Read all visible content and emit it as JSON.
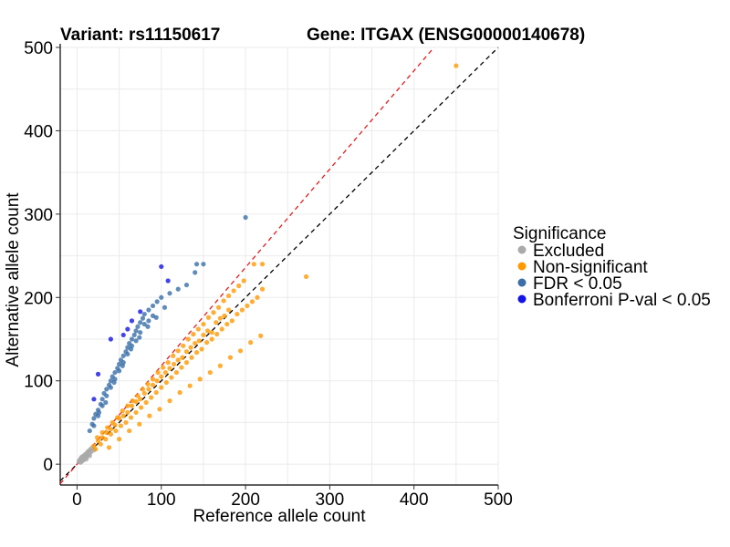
{
  "chart_data": {
    "type": "scatter",
    "title_left": "Variant: rs11150617",
    "title_right": "Gene: ITGAX (ENSG00000140678)",
    "xlabel": "Reference allele count",
    "ylabel": "Alternative allele count",
    "xlim": [
      -20,
      500
    ],
    "ylim": [
      -25,
      500
    ],
    "xticks": [
      0,
      100,
      200,
      300,
      400,
      500
    ],
    "yticks": [
      0,
      100,
      200,
      300,
      400,
      500
    ],
    "x_tick_labels": [
      "0",
      "100",
      "200",
      "300",
      "400",
      "500"
    ],
    "y_tick_labels": [
      "0",
      "100",
      "200",
      "300",
      "400",
      "500"
    ],
    "reference_lines": [
      {
        "name": "identity",
        "slope": 1.0,
        "intercept": 0,
        "color": "#000000",
        "dash": "dashed"
      },
      {
        "name": "expected-bias",
        "slope": 1.18,
        "intercept": 0,
        "color": "#e41a1c",
        "dash": "dashed"
      }
    ],
    "legend": {
      "title": "Significance",
      "position": "right",
      "entries": [
        {
          "label": "Excluded",
          "color": "#aaaaaa"
        },
        {
          "label": "Non-significant",
          "color": "#ff9900"
        },
        {
          "label": "FDR < 0.05",
          "color": "#3a6fa8"
        },
        {
          "label": "Bonferroni P-val < 0.05",
          "color": "#1414e6"
        }
      ]
    },
    "series": [
      {
        "name": "Excluded",
        "color": "#aaaaaa",
        "points": [
          [
            2,
            3
          ],
          [
            3,
            5
          ],
          [
            4,
            2
          ],
          [
            5,
            8
          ],
          [
            6,
            4
          ],
          [
            7,
            6
          ],
          [
            8,
            10
          ],
          [
            9,
            7
          ],
          [
            10,
            12
          ],
          [
            11,
            9
          ],
          [
            12,
            14
          ],
          [
            13,
            11
          ],
          [
            14,
            16
          ],
          [
            15,
            13
          ],
          [
            16,
            18
          ],
          [
            17,
            15
          ],
          [
            18,
            20
          ],
          [
            20,
            17
          ],
          [
            4,
            6
          ],
          [
            6,
            9
          ],
          [
            8,
            5
          ],
          [
            10,
            8
          ],
          [
            12,
            10
          ],
          [
            14,
            12
          ],
          [
            5,
            3
          ],
          [
            7,
            9
          ],
          [
            9,
            11
          ],
          [
            11,
            6
          ],
          [
            13,
            15
          ],
          [
            15,
            10
          ]
        ]
      },
      {
        "name": "Non-significant",
        "color": "#ff9900",
        "points": [
          [
            20,
            22
          ],
          [
            25,
            28
          ],
          [
            30,
            32
          ],
          [
            35,
            38
          ],
          [
            40,
            42
          ],
          [
            45,
            47
          ],
          [
            50,
            55
          ],
          [
            55,
            58
          ],
          [
            60,
            62
          ],
          [
            65,
            70
          ],
          [
            70,
            75
          ],
          [
            75,
            78
          ],
          [
            80,
            85
          ],
          [
            85,
            90
          ],
          [
            90,
            95
          ],
          [
            95,
            100
          ],
          [
            100,
            105
          ],
          [
            105,
            110
          ],
          [
            110,
            115
          ],
          [
            115,
            120
          ],
          [
            120,
            125
          ],
          [
            125,
            128
          ],
          [
            130,
            135
          ],
          [
            135,
            140
          ],
          [
            140,
            145
          ],
          [
            145,
            148
          ],
          [
            150,
            155
          ],
          [
            155,
            160
          ],
          [
            160,
            158
          ],
          [
            165,
            170
          ],
          [
            170,
            175
          ],
          [
            175,
            178
          ],
          [
            180,
            185
          ],
          [
            22,
            18
          ],
          [
            28,
            24
          ],
          [
            34,
            30
          ],
          [
            40,
            36
          ],
          [
            46,
            40
          ],
          [
            52,
            46
          ],
          [
            58,
            50
          ],
          [
            64,
            56
          ],
          [
            70,
            62
          ],
          [
            76,
            68
          ],
          [
            82,
            74
          ],
          [
            88,
            80
          ],
          [
            94,
            86
          ],
          [
            100,
            92
          ],
          [
            106,
            98
          ],
          [
            112,
            104
          ],
          [
            118,
            110
          ],
          [
            124,
            116
          ],
          [
            130,
            122
          ],
          [
            136,
            128
          ],
          [
            142,
            134
          ],
          [
            148,
            138
          ],
          [
            154,
            146
          ],
          [
            160,
            150
          ],
          [
            166,
            156
          ],
          [
            172,
            162
          ],
          [
            178,
            168
          ],
          [
            184,
            172
          ],
          [
            190,
            180
          ],
          [
            196,
            185
          ],
          [
            202,
            190
          ],
          [
            208,
            195
          ],
          [
            214,
            200
          ],
          [
            220,
            210
          ],
          [
            24,
            32
          ],
          [
            30,
            38
          ],
          [
            36,
            44
          ],
          [
            42,
            50
          ],
          [
            48,
            56
          ],
          [
            54,
            64
          ],
          [
            60,
            70
          ],
          [
            66,
            76
          ],
          [
            72,
            82
          ],
          [
            78,
            90
          ],
          [
            84,
            96
          ],
          [
            90,
            102
          ],
          [
            96,
            110
          ],
          [
            102,
            116
          ],
          [
            108,
            122
          ],
          [
            114,
            130
          ],
          [
            120,
            136
          ],
          [
            126,
            142
          ],
          [
            132,
            150
          ],
          [
            138,
            156
          ],
          [
            144,
            162
          ],
          [
            150,
            168
          ],
          [
            156,
            176
          ],
          [
            162,
            182
          ],
          [
            168,
            188
          ],
          [
            174,
            196
          ],
          [
            180,
            202
          ],
          [
            186,
            208
          ],
          [
            192,
            214
          ],
          [
            198,
            220
          ],
          [
            210,
            240
          ],
          [
            220,
            240
          ],
          [
            272,
            225
          ],
          [
            450,
            478
          ],
          [
            38,
            20
          ],
          [
            50,
            30
          ],
          [
            62,
            40
          ],
          [
            74,
            48
          ],
          [
            86,
            58
          ],
          [
            98,
            66
          ],
          [
            110,
            76
          ],
          [
            122,
            86
          ],
          [
            134,
            94
          ],
          [
            146,
            102
          ],
          [
            158,
            110
          ],
          [
            170,
            118
          ],
          [
            182,
            128
          ],
          [
            194,
            136
          ],
          [
            206,
            146
          ],
          [
            218,
            154
          ]
        ]
      },
      {
        "name": "FDR < 0.05",
        "color": "#3a6fa8",
        "points": [
          [
            15,
            40
          ],
          [
            18,
            48
          ],
          [
            20,
            55
          ],
          [
            22,
            60
          ],
          [
            25,
            65
          ],
          [
            28,
            72
          ],
          [
            30,
            78
          ],
          [
            32,
            85
          ],
          [
            35,
            90
          ],
          [
            38,
            95
          ],
          [
            40,
            100
          ],
          [
            42,
            105
          ],
          [
            45,
            110
          ],
          [
            48,
            115
          ],
          [
            50,
            120
          ],
          [
            52,
            125
          ],
          [
            55,
            130
          ],
          [
            58,
            135
          ],
          [
            60,
            140
          ],
          [
            62,
            145
          ],
          [
            65,
            150
          ],
          [
            68,
            155
          ],
          [
            70,
            160
          ],
          [
            72,
            165
          ],
          [
            75,
            170
          ],
          [
            78,
            175
          ],
          [
            80,
            180
          ],
          [
            85,
            185
          ],
          [
            90,
            190
          ],
          [
            95,
            195
          ],
          [
            100,
            200
          ],
          [
            110,
            205
          ],
          [
            120,
            210
          ],
          [
            130,
            215
          ],
          [
            140,
            230
          ],
          [
            150,
            240
          ],
          [
            142,
            240
          ],
          [
            200,
            296
          ],
          [
            25,
            58
          ],
          [
            30,
            70
          ],
          [
            35,
            82
          ],
          [
            40,
            92
          ],
          [
            45,
            102
          ],
          [
            50,
            112
          ],
          [
            55,
            122
          ],
          [
            60,
            132
          ],
          [
            65,
            142
          ],
          [
            70,
            148
          ],
          [
            75,
            158
          ],
          [
            80,
            168
          ],
          [
            85,
            172
          ],
          [
            90,
            178
          ],
          [
            20,
            46
          ],
          [
            26,
            62
          ],
          [
            34,
            74
          ],
          [
            44,
            98
          ],
          [
            54,
            118
          ],
          [
            64,
            138
          ],
          [
            74,
            152
          ],
          [
            84,
            165
          ],
          [
            94,
            176
          ],
          [
            104,
            188
          ]
        ]
      },
      {
        "name": "Bonferroni P-val < 0.05",
        "color": "#1414e6",
        "points": [
          [
            20,
            78
          ],
          [
            25,
            108
          ],
          [
            40,
            150
          ],
          [
            55,
            155
          ],
          [
            60,
            162
          ],
          [
            65,
            172
          ],
          [
            75,
            183
          ],
          [
            100,
            237
          ],
          [
            108,
            220
          ]
        ]
      }
    ]
  }
}
